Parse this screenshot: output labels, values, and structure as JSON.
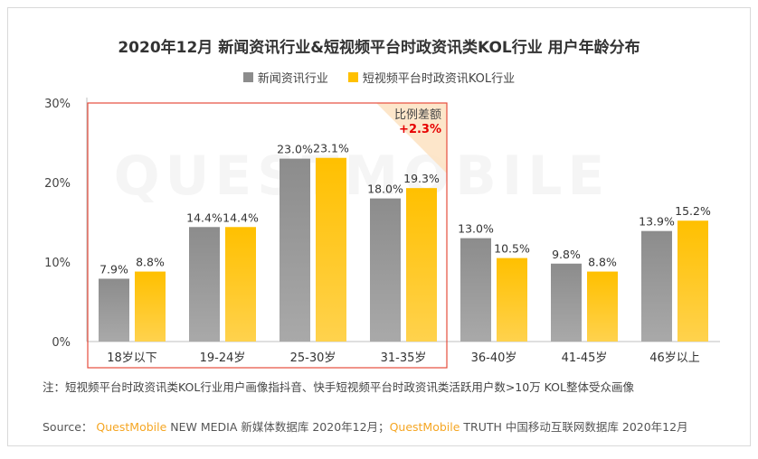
{
  "title": "2020年12月 新闻资讯行业&短视频平台时政资讯类KOL行业 用户年龄分布",
  "note": "注：短视频平台时政资讯类KOL行业用户画像指抖音、快手短视频平台时政资讯类活跃用户数>10万 KOL整体受众画像",
  "source": {
    "prefix": "Source：",
    "brand1": "QuestMobile",
    "text1": " NEW MEDIA 新媒体数据库 2020年12月；",
    "brand2": "QuestMobile",
    "text2": " TRUTH 中国移动互联网数据库 2020年12月"
  },
  "watermark": "QUESTMOBILE",
  "callout": {
    "label": "比例差额",
    "value": "+2.3%"
  },
  "colors": {
    "series1": "#8c8c8c",
    "series2": "#ffc000",
    "highlight_border": "#e74c3c",
    "callout_value": "#e60000"
  },
  "chart_data": {
    "type": "bar",
    "categories": [
      "18岁以下",
      "19-24岁",
      "25-30岁",
      "31-35岁",
      "36-40岁",
      "41-45岁",
      "46岁以上"
    ],
    "series": [
      {
        "name": "新闻资讯行业",
        "values": [
          7.9,
          14.4,
          23.0,
          18.0,
          13.0,
          9.8,
          13.9
        ],
        "labels": [
          "7.9%",
          "14.4%",
          "23.0%",
          "18.0%",
          "13.0%",
          "9.8%",
          "13.9%"
        ]
      },
      {
        "name": "短视频平台时政资讯KOL行业",
        "values": [
          8.8,
          14.4,
          23.1,
          19.3,
          10.5,
          8.8,
          15.2
        ],
        "labels": [
          "8.8%",
          "14.4%",
          "23.1%",
          "19.3%",
          "10.5%",
          "8.8%",
          "15.2%"
        ]
      }
    ],
    "ylim": [
      0,
      30
    ],
    "yticks": [
      "0%",
      "10%",
      "20%",
      "30%"
    ],
    "highlight_categories": [
      "18岁以下",
      "19-24岁",
      "25-30岁",
      "31-35岁"
    ],
    "legend_position": "top",
    "grid": false
  }
}
